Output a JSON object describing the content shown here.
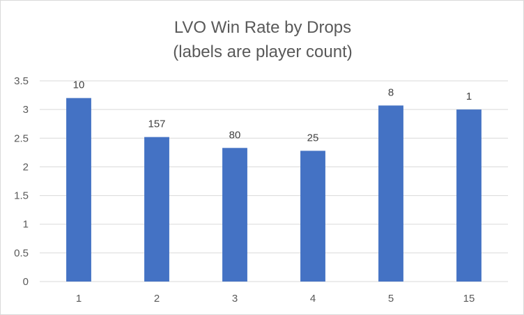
{
  "chart_data": {
    "type": "bar",
    "title": "LVO Win Rate by Drops",
    "subtitle": "(labels are player count)",
    "xlabel": "",
    "ylabel": "",
    "categories": [
      "1",
      "2",
      "3",
      "4",
      "5",
      "15"
    ],
    "values": [
      3.2,
      2.52,
      2.33,
      2.28,
      3.07,
      3.0
    ],
    "data_labels": [
      "10",
      "157",
      "80",
      "25",
      "8",
      "1"
    ],
    "ylim": [
      0,
      3.5
    ],
    "yticks": [
      "0",
      "0.5",
      "1",
      "1.5",
      "2",
      "2.5",
      "3",
      "3.5"
    ],
    "grid": true,
    "legend": "none",
    "colors": {
      "bar": "#4472c4",
      "grid": "#d9d9d9",
      "text": "#595959"
    }
  }
}
